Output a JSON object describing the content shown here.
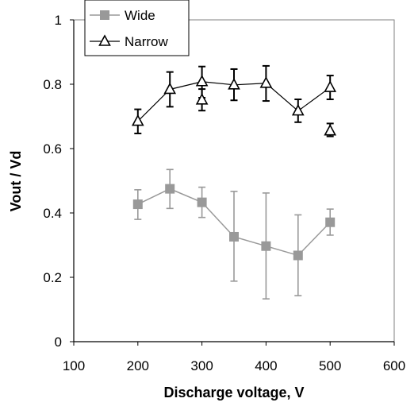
{
  "chart_data": {
    "type": "scatter",
    "xlabel": "Discharge voltage, V",
    "ylabel": "Vout / Vd",
    "xlim": [
      100,
      600
    ],
    "ylim": [
      0,
      1
    ],
    "xticks": [
      100,
      200,
      300,
      400,
      500,
      600
    ],
    "yticks": [
      0,
      0.2,
      0.4,
      0.6,
      0.8,
      1
    ],
    "xtick_labels": [
      "100",
      "200",
      "300",
      "400",
      "500",
      "600"
    ],
    "ytick_labels": [
      "0",
      "0.2",
      "0.4",
      "0.6",
      "0.8",
      "1"
    ],
    "grid": false,
    "legend_position": "top-left",
    "series": [
      {
        "name": "Wide",
        "marker": "filled-square",
        "color": "#999999",
        "connected": true,
        "points": [
          {
            "x": 200,
            "y": 0.427,
            "err_low": 0.38,
            "err_high": 0.472
          },
          {
            "x": 250,
            "y": 0.475,
            "err_low": 0.414,
            "err_high": 0.535
          },
          {
            "x": 300,
            "y": 0.433,
            "err_low": 0.386,
            "err_high": 0.48
          },
          {
            "x": 350,
            "y": 0.326,
            "err_low": 0.188,
            "err_high": 0.467
          },
          {
            "x": 400,
            "y": 0.297,
            "err_low": 0.133,
            "err_high": 0.462
          },
          {
            "x": 450,
            "y": 0.268,
            "err_low": 0.143,
            "err_high": 0.394
          },
          {
            "x": 500,
            "y": 0.371,
            "err_low": 0.331,
            "err_high": 0.412
          }
        ]
      },
      {
        "name": "Narrow",
        "marker": "open-triangle",
        "color": "#000000",
        "connected": true,
        "points": [
          {
            "x": 200,
            "y": 0.685,
            "err_low": 0.647,
            "err_high": 0.722
          },
          {
            "x": 250,
            "y": 0.784,
            "err_low": 0.73,
            "err_high": 0.838
          },
          {
            "x": 300,
            "y": 0.808,
            "err_low": 0.758,
            "err_high": 0.855
          },
          {
            "x": 350,
            "y": 0.798,
            "err_low": 0.75,
            "err_high": 0.847
          },
          {
            "x": 400,
            "y": 0.803,
            "err_low": 0.748,
            "err_high": 0.857
          },
          {
            "x": 450,
            "y": 0.717,
            "err_low": 0.682,
            "err_high": 0.753
          },
          {
            "x": 500,
            "y": 0.79,
            "err_low": 0.753,
            "err_high": 0.827
          }
        ],
        "extra_points": [
          {
            "x": 300,
            "y": 0.751,
            "err_low": 0.718,
            "err_high": 0.785
          },
          {
            "x": 500,
            "y": 0.655,
            "err_low": 0.638,
            "err_high": 0.678
          }
        ]
      }
    ]
  }
}
